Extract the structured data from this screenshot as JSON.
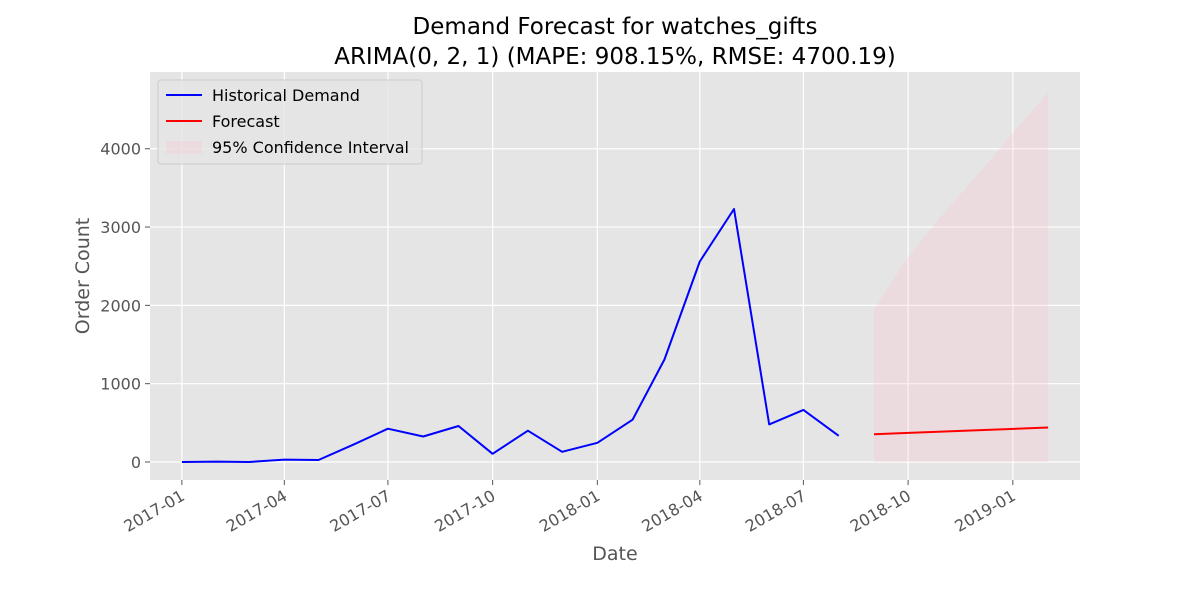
{
  "chart_data": {
    "type": "line",
    "title": "Demand Forecast for watches_gifts",
    "subtitle": "ARIMA(0, 2, 1) (MAPE: 908.15%, RMSE: 4700.19)",
    "xlabel": "Date",
    "ylabel": "Order Count",
    "xlim": [
      "2016-12-04",
      "2019-03-01"
    ],
    "ylim": [
      -230,
      4980
    ],
    "x_ticks": [
      "2017-01",
      "2017-04",
      "2017-07",
      "2017-10",
      "2018-01",
      "2018-04",
      "2018-07",
      "2018-10",
      "2019-01"
    ],
    "y_ticks": [
      0,
      1000,
      2000,
      3000,
      4000
    ],
    "grid": true,
    "legend_position": "top-left",
    "series": [
      {
        "name": "Historical Demand",
        "color": "#0000ff",
        "x": [
          "2017-01-01",
          "2017-02-01",
          "2017-03-01",
          "2017-04-01",
          "2017-05-01",
          "2017-06-01",
          "2017-07-01",
          "2017-08-01",
          "2017-09-01",
          "2017-10-01",
          "2017-11-01",
          "2017-12-01",
          "2018-01-01",
          "2018-02-01",
          "2018-03-01",
          "2018-04-01",
          "2018-05-01",
          "2018-06-01",
          "2018-07-01",
          "2018-08-01"
        ],
        "values": [
          0,
          5,
          0,
          30,
          25,
          225,
          425,
          325,
          460,
          105,
          400,
          130,
          245,
          540,
          1310,
          2560,
          3230,
          480,
          665,
          335
        ]
      },
      {
        "name": "Forecast",
        "color": "#ff0000",
        "x": [
          "2018-09-01",
          "2019-02-01"
        ],
        "values": [
          355,
          440
        ]
      }
    ],
    "confidence_interval": {
      "name": "95% Confidence Interval",
      "color": "#ffc0cb",
      "x": [
        "2018-09-01",
        "2018-10-01",
        "2018-11-01",
        "2018-12-01",
        "2019-01-01",
        "2019-02-01"
      ],
      "lower": [
        0,
        0,
        0,
        0,
        0,
        0
      ],
      "upper": [
        1950,
        2620,
        3170,
        3670,
        4200,
        4720
      ]
    }
  }
}
